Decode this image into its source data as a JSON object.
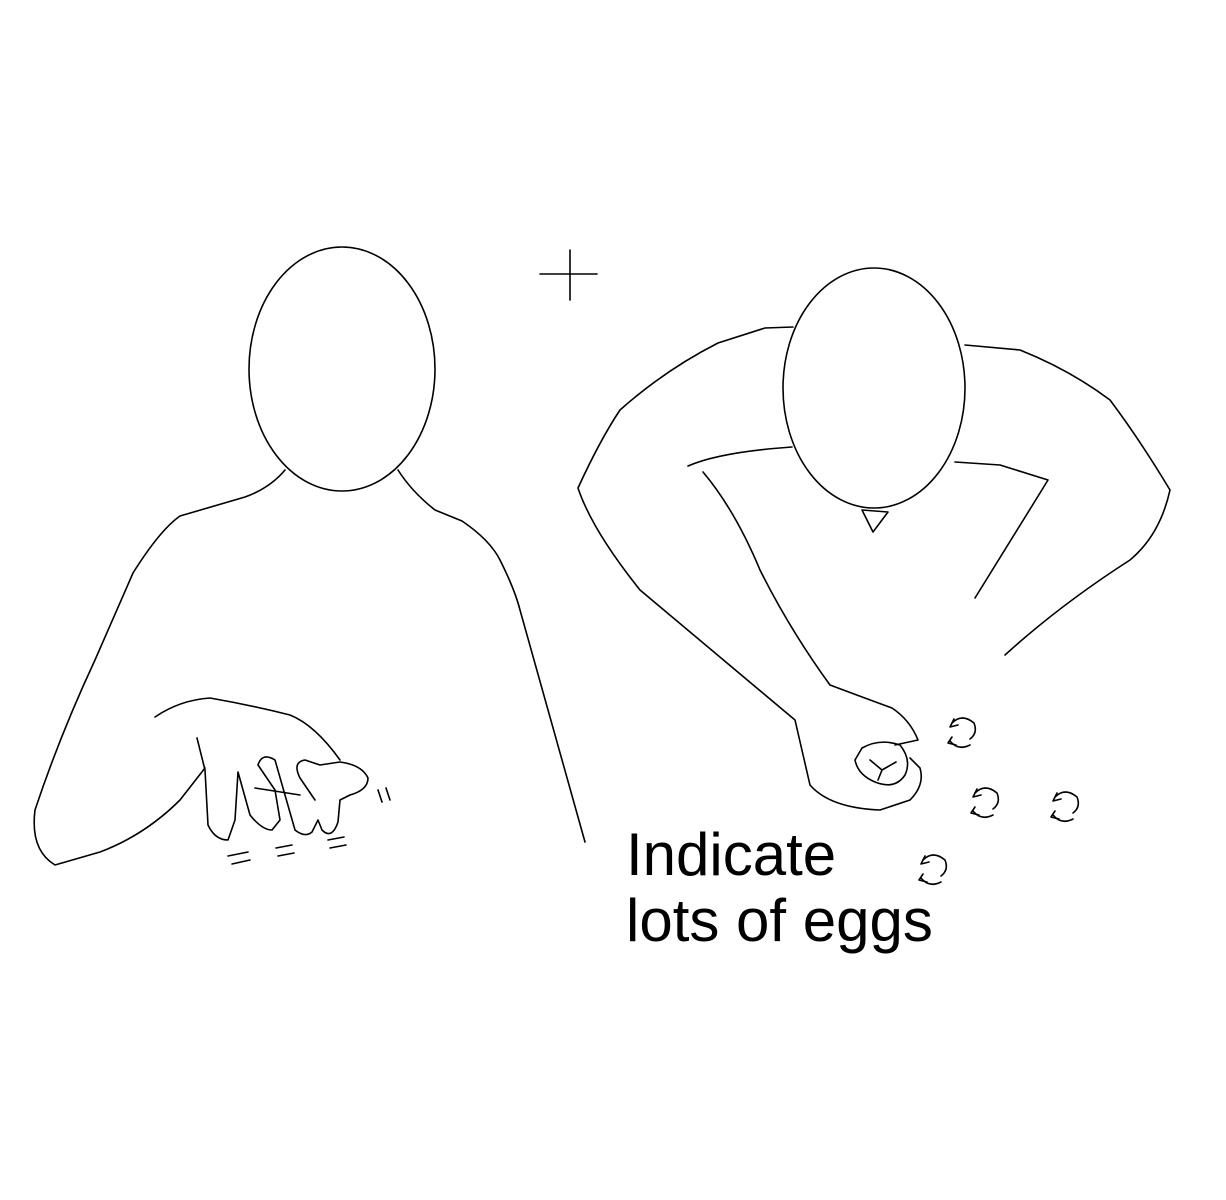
{
  "caption": {
    "line1": "Indicate",
    "line2": "lots of eggs"
  },
  "figures": [
    {
      "name": "signer-left",
      "pose": "hand with fingers wiggling"
    },
    {
      "name": "signer-right",
      "pose": "leaning forward, hand scattering"
    }
  ],
  "colors": {
    "stroke": "#000000",
    "background": "#ffffff"
  }
}
